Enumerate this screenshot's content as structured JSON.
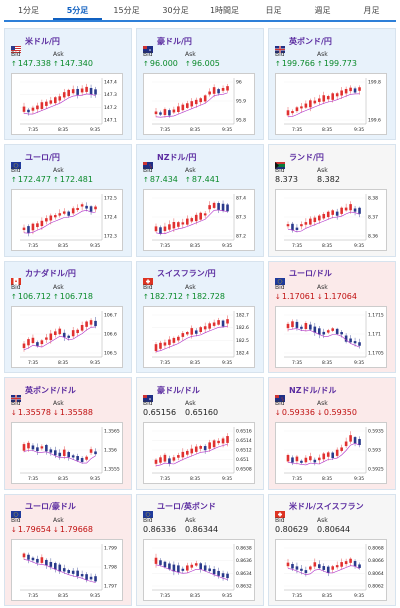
{
  "tabs": [
    {
      "label": "1分足"
    },
    {
      "label": "5分足"
    },
    {
      "label": "15分足"
    },
    {
      "label": "30分足"
    },
    {
      "label": "1時間足"
    },
    {
      "label": "日足"
    },
    {
      "label": "週足"
    },
    {
      "label": "月足"
    }
  ],
  "active_tab": "5分足",
  "labels": {
    "bid": "Bid",
    "ask": "Ask"
  },
  "colors": {
    "up_text": "#0a8a2a",
    "down_text": "#c01010",
    "card_up": "#e8f2fb",
    "card_down": "#fbeaea",
    "bull_candle": "#e03030",
    "bear_candle": "#2a3a8c",
    "moving_average": "#b030c8"
  },
  "cards": [
    {
      "name": "米ドル/円",
      "flag": "us-flag",
      "trend": "up",
      "bid": "147.338",
      "ask": "147.340",
      "bid_dir": "up",
      "ask_dir": "up",
      "yticks": [
        "147.4",
        "147.3",
        "147.2",
        "147.1"
      ],
      "xticks": [
        "7:35",
        "8:35",
        "9:35"
      ]
    },
    {
      "name": "豪ドル/円",
      "flag": "au-flag",
      "trend": "up",
      "bid": "96.000",
      "ask": "96.005",
      "bid_dir": "up",
      "ask_dir": "up",
      "yticks": [
        "96",
        "95.9",
        "95.8"
      ],
      "xticks": [
        "7:35",
        "8:35",
        "9:35"
      ]
    },
    {
      "name": "英ポンド/円",
      "flag": "gb-flag",
      "trend": "up",
      "bid": "199.766",
      "ask": "199.773",
      "bid_dir": "up",
      "ask_dir": "up",
      "yticks": [
        "199.8",
        "199.6"
      ],
      "xticks": [
        "7:35",
        "8:35",
        "9:35"
      ]
    },
    {
      "name": "ユーロ/円",
      "flag": "eu-flag",
      "trend": "up",
      "bid": "172.477",
      "ask": "172.481",
      "bid_dir": "up",
      "ask_dir": "up",
      "yticks": [
        "172.5",
        "172.4",
        "172.3"
      ],
      "xticks": [
        "7:35",
        "8:35",
        "9:35"
      ]
    },
    {
      "name": "NZドル/円",
      "flag": "nz-flag",
      "trend": "up",
      "bid": "87.434",
      "ask": "87.441",
      "bid_dir": "up",
      "ask_dir": "up",
      "yticks": [
        "87.4",
        "87.3",
        "87.2"
      ],
      "xticks": [
        "7:35",
        "8:35",
        "9:35"
      ]
    },
    {
      "name": "ランド/円",
      "flag": "za-flag",
      "trend": "neutral",
      "bid": "8.373",
      "ask": "8.382",
      "bid_dir": "none",
      "ask_dir": "none",
      "yticks": [
        "8.38",
        "8.37",
        "8.36"
      ],
      "xticks": [
        "7:35",
        "8:35",
        "9:35"
      ]
    },
    {
      "name": "カナダドル/円",
      "flag": "ca-flag",
      "trend": "up",
      "bid": "106.712",
      "ask": "106.718",
      "bid_dir": "up",
      "ask_dir": "up",
      "yticks": [
        "106.7",
        "106.6",
        "106.5"
      ],
      "xticks": [
        "7:35",
        "8:35",
        "9:35"
      ]
    },
    {
      "name": "スイスフラン/円",
      "flag": "ch-flag",
      "trend": "up",
      "bid": "182.712",
      "ask": "182.728",
      "bid_dir": "up",
      "ask_dir": "up",
      "yticks": [
        "182.7",
        "182.6",
        "182.5",
        "182.4"
      ],
      "xticks": [
        "7:35",
        "8:35",
        "9:35"
      ]
    },
    {
      "name": "ユーロ/ドル",
      "flag": "eu-flag",
      "trend": "down",
      "bid": "1.17061",
      "ask": "1.17064",
      "bid_dir": "down",
      "ask_dir": "down",
      "yticks": [
        "1.1715",
        "1.171",
        "1.1705"
      ],
      "xticks": [
        "7:35",
        "8:35",
        "9:35"
      ]
    },
    {
      "name": "英ポンド/ドル",
      "flag": "gb-flag",
      "trend": "down",
      "bid": "1.35578",
      "ask": "1.35588",
      "bid_dir": "down",
      "ask_dir": "down",
      "yticks": [
        "1.3565",
        "1.356",
        "1.3555"
      ],
      "xticks": [
        "7:35",
        "8:35",
        "9:35"
      ]
    },
    {
      "name": "豪ドル/ドル",
      "flag": "au-flag",
      "trend": "neutral",
      "bid": "0.65156",
      "ask": "0.65160",
      "bid_dir": "none",
      "ask_dir": "none",
      "yticks": [
        "0.6516",
        "0.6514",
        "0.6512",
        "0.651",
        "0.6508"
      ],
      "xticks": [
        "7:35",
        "8:35",
        "9:35"
      ]
    },
    {
      "name": "NZドル/ドル",
      "flag": "nz-flag",
      "trend": "down",
      "bid": "0.59336",
      "ask": "0.59350",
      "bid_dir": "down",
      "ask_dir": "down",
      "yticks": [
        "0.5935",
        "0.593",
        "0.5925"
      ],
      "xticks": [
        "7:35",
        "8:35",
        "9:35"
      ]
    },
    {
      "name": "ユーロ/豪ドル",
      "flag": "eu-flag",
      "trend": "down",
      "bid": "1.79654",
      "ask": "1.79668",
      "bid_dir": "down",
      "ask_dir": "down",
      "yticks": [
        "1.799",
        "1.798",
        "1.797"
      ],
      "xticks": [
        "7:35",
        "8:35",
        "9:35"
      ]
    },
    {
      "name": "ユーロ/英ポンド",
      "flag": "eu-flag",
      "trend": "neutral",
      "bid": "0.86336",
      "ask": "0.86344",
      "bid_dir": "none",
      "ask_dir": "none",
      "yticks": [
        "0.8638",
        "0.8636",
        "0.8634",
        "0.8632"
      ],
      "xticks": [
        "7:35",
        "8:35",
        "9:35"
      ]
    },
    {
      "name": "米ドル/スイスフラン",
      "flag": "ch-flag",
      "trend": "neutral",
      "bid": "0.80629",
      "ask": "0.80644",
      "bid_dir": "none",
      "ask_dir": "none",
      "yticks": [
        "0.8068",
        "0.8066",
        "0.8064",
        "0.8062"
      ],
      "xticks": [
        "7:35",
        "8:35",
        "9:35"
      ]
    }
  ]
}
